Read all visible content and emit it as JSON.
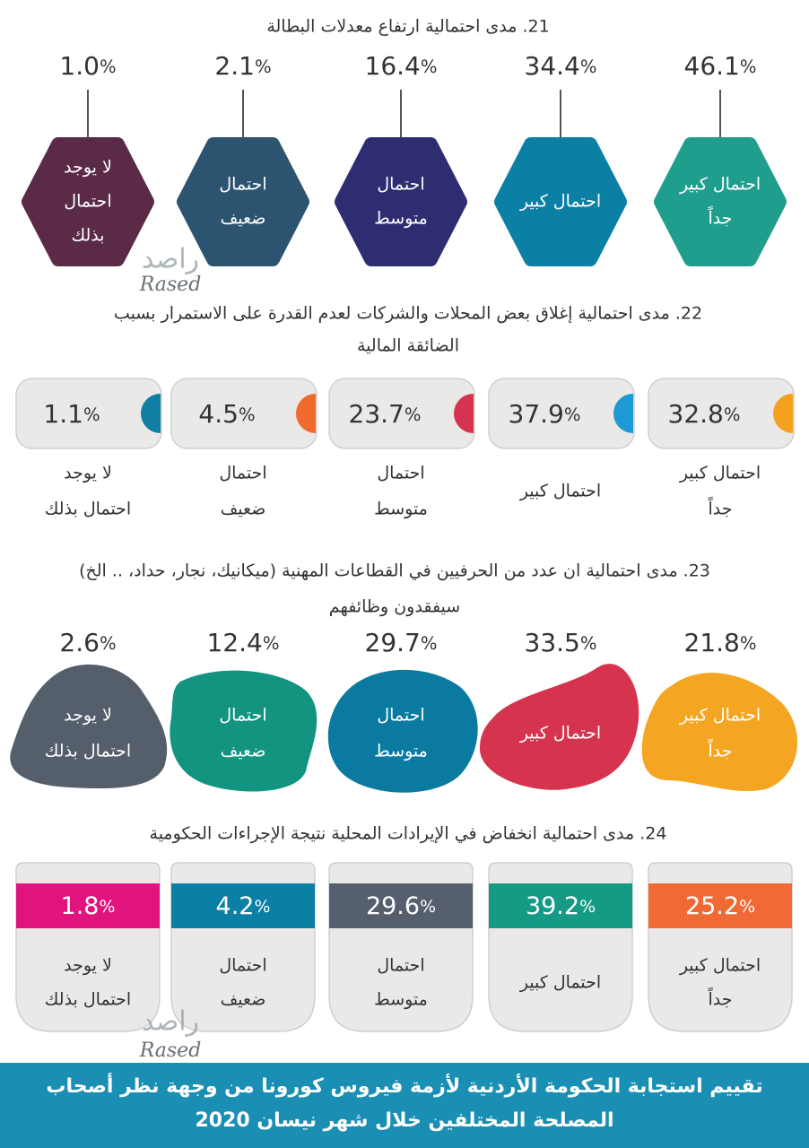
{
  "sections": [
    {
      "title": [
        "21.  مدى احتمالية ارتفاع معدلات البطالة"
      ],
      "items": [
        {
          "value": "46.1",
          "unit": "%",
          "label": [
            "احتمال كبير",
            "جداً"
          ],
          "color": "#1f9e8d"
        },
        {
          "value": "34.4",
          "unit": "%",
          "label": [
            "احتمال كبير"
          ],
          "color": "#0b7fa4"
        },
        {
          "value": "16.4",
          "unit": "%",
          "label": [
            "احتمال",
            "متوسط"
          ],
          "color": "#2e2d72"
        },
        {
          "value": "2.1",
          "unit": "%",
          "label": [
            "احتمال",
            "ضعيف"
          ],
          "color": "#2c5470"
        },
        {
          "value": "1.0",
          "unit": "%",
          "label": [
            "لا يوجد",
            "احتمال",
            "بذلك"
          ],
          "color": "#5b2a47"
        }
      ]
    },
    {
      "title": [
        "22.  مدى احتمالية إغلاق بعض المحلات والشركات لعدم القدرة على الاستمرار بسبب",
        "الضائقة المالية"
      ],
      "items": [
        {
          "value": "32.8",
          "unit": "%",
          "label": [
            "احتمال كبير",
            "جداً"
          ],
          "color": "#f4a11d"
        },
        {
          "value": "37.9",
          "unit": "%",
          "label": [
            "احتمال كبير"
          ],
          "color": "#1e9ad6"
        },
        {
          "value": "23.7",
          "unit": "%",
          "label": [
            "احتمال",
            "متوسط"
          ],
          "color": "#d6334f"
        },
        {
          "value": "4.5",
          "unit": "%",
          "label": [
            "احتمال",
            "ضعيف"
          ],
          "color": "#ef6a2c"
        },
        {
          "value": "1.1",
          "unit": "%",
          "label": [
            "لا يوجد",
            "احتمال بذلك"
          ],
          "color": "#0f7fa3"
        }
      ]
    },
    {
      "title": [
        "23.  مدى احتمالية ان عدد من الحرفيين في القطاعات المهنية (ميكانيك، نجار، حداد، .. الخ)",
        "سيفقدون وظائفهم"
      ],
      "items": [
        {
          "value": "21.8",
          "unit": "%",
          "label": [
            "احتمال كبير",
            "جداً"
          ],
          "color": "#f4a623"
        },
        {
          "value": "33.5",
          "unit": "%",
          "label": [
            "احتمال كبير"
          ],
          "color": "#d6334f"
        },
        {
          "value": "29.7",
          "unit": "%",
          "label": [
            "احتمال",
            "متوسط"
          ],
          "color": "#0b7aa0"
        },
        {
          "value": "12.4",
          "unit": "%",
          "label": [
            "احتمال",
            "ضعيف"
          ],
          "color": "#139481"
        },
        {
          "value": "2.6",
          "unit": "%",
          "label": [
            "لا يوجد",
            "احتمال بذلك"
          ],
          "color": "#555f6b"
        }
      ]
    },
    {
      "title": [
        "24.  مدى احتمالية انخفاض في الإيرادات المحلية نتيجة الإجراءات الحكومية"
      ],
      "items": [
        {
          "value": "25.2",
          "unit": "%",
          "label": [
            "احتمال كبير",
            "جداً"
          ],
          "color": "#ef6a35"
        },
        {
          "value": "39.2",
          "unit": "%",
          "label": [
            "احتمال كبير"
          ],
          "color": "#159a86"
        },
        {
          "value": "29.6",
          "unit": "%",
          "label": [
            "احتمال",
            "متوسط"
          ],
          "color": "#555f6d"
        },
        {
          "value": "4.2",
          "unit": "%",
          "label": [
            "احتمال",
            "ضعيف"
          ],
          "color": "#0b7fa4"
        },
        {
          "value": "1.8",
          "unit": "%",
          "label": [
            "لا يوجد",
            "احتمال بذلك"
          ],
          "color": "#e0137f"
        }
      ]
    }
  ],
  "watermark": {
    "arabic": "راصد",
    "latin": "Rased"
  },
  "footer": [
    "تقييم استجابة الحكومة الأردنية لأزمة فيروس كورونا من وجهة نظر أصحاب",
    "المصلحة المختلفين خلال شهر نيسان 2020"
  ]
}
